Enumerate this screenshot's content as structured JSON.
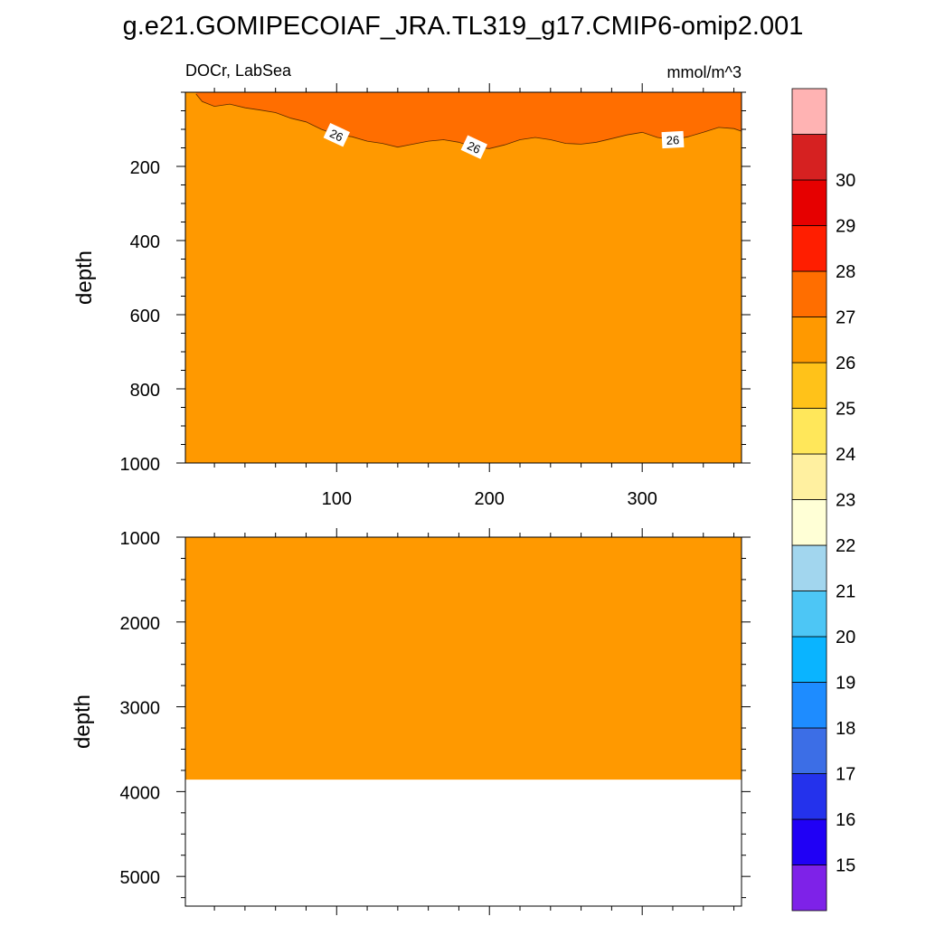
{
  "chart_data": {
    "type": "heatmap",
    "title": "g.e21.GOMIPECOIAF_JRA.TL319_g17.CMIP6-omip2.001",
    "subtitle_left": "DOCr, LabSea",
    "units": "mmol/m^3",
    "ylabel": "depth",
    "x_range": [
      1,
      365
    ],
    "x_ticks": [
      100,
      200,
      300
    ],
    "x_tick_labels": [
      "100",
      "200",
      "300"
    ],
    "panels": [
      {
        "name": "upper",
        "ylim": [
          0,
          1000
        ],
        "y_ticks": [
          200,
          400,
          600,
          800,
          1000
        ],
        "y_tick_labels": [
          "200",
          "400",
          "600",
          "800",
          "1000"
        ]
      },
      {
        "name": "lower",
        "ylim": [
          1000,
          5350
        ],
        "y_ticks": [
          1000,
          2000,
          3000,
          4000,
          5000
        ],
        "y_tick_labels": [
          "1000",
          "2000",
          "3000",
          "4000",
          "5000"
        ],
        "ocean_bottom_depth": 3860
      }
    ],
    "fields": {
      "background_value_range": [
        25,
        26
      ],
      "surface_layer_value_range": [
        26,
        27
      ],
      "contour_level": 26,
      "contour_label_text": "26",
      "contour_label_x": [
        100,
        190,
        320
      ],
      "contour_26_depth": {
        "x": [
          8,
          12,
          20,
          30,
          40,
          50,
          60,
          70,
          80,
          90,
          100,
          110,
          120,
          130,
          140,
          150,
          160,
          170,
          180,
          190,
          200,
          210,
          220,
          230,
          240,
          250,
          260,
          270,
          280,
          290,
          300,
          310,
          320,
          330,
          340,
          350,
          360,
          365
        ],
        "depth": [
          5,
          25,
          38,
          32,
          42,
          48,
          55,
          70,
          80,
          100,
          115,
          120,
          132,
          138,
          148,
          140,
          132,
          128,
          135,
          148,
          152,
          142,
          128,
          122,
          128,
          138,
          140,
          135,
          125,
          115,
          108,
          122,
          128,
          120,
          108,
          95,
          98,
          105
        ]
      }
    },
    "colorbar": {
      "labels": [
        "15",
        "16",
        "17",
        "18",
        "19",
        "20",
        "21",
        "22",
        "23",
        "24",
        "25",
        "26",
        "27",
        "28",
        "29",
        "30"
      ],
      "colors": [
        "#7E22E8",
        "#2000F5",
        "#2432EC",
        "#3C6EE6",
        "#1E8CFF",
        "#0AB4FF",
        "#4DC6F5",
        "#A2D6EE",
        "#FFFFD6",
        "#FFF0A0",
        "#FFE75A",
        "#FFC219",
        "#FF9900",
        "#FF6E00",
        "#FF1E00",
        "#E60000",
        "#D62121",
        "#FFB3B3"
      ]
    },
    "colors": {
      "background": "#FF9900",
      "surface": "#FF6E00",
      "below_bottom": "#FFFFFF"
    }
  }
}
